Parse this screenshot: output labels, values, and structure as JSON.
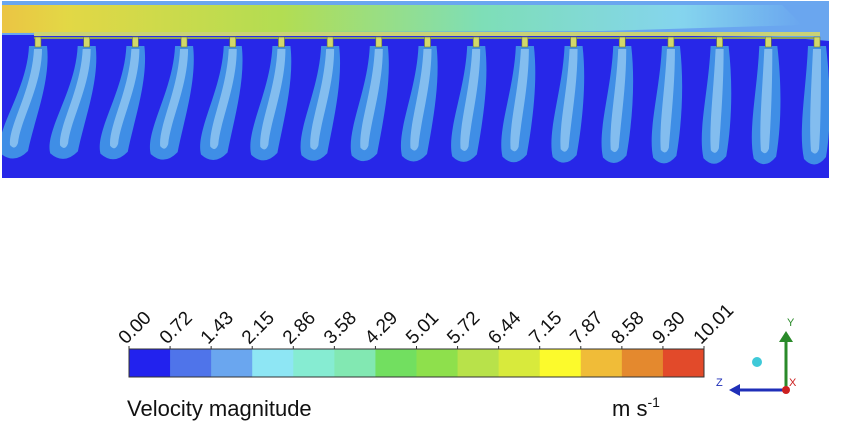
{
  "colorbar": {
    "title": "Velocity magnitude",
    "unit": "m s",
    "unit_exp": "-1",
    "ticks": [
      "0.00",
      "0.72",
      "1.43",
      "2.15",
      "2.86",
      "3.58",
      "4.29",
      "5.01",
      "5.72",
      "6.44",
      "7.15",
      "7.87",
      "8.58",
      "9.30",
      "10.01"
    ],
    "colors": [
      "#2222ee",
      "#4f74ea",
      "#6aa6ef",
      "#8ee6f4",
      "#86ecd2",
      "#82e8b2",
      "#72df60",
      "#8ee04c",
      "#b8e24a",
      "#d8ea3c",
      "#fcfa2c",
      "#f0bc38",
      "#e4892e",
      "#e24a2a"
    ]
  },
  "contour": {
    "background": "#2727e8",
    "plume_color": "#3f8ee6",
    "core_color": "#8fc6f0",
    "nozzle_count": 17
  },
  "axes": {
    "y": "Y",
    "z": "Z",
    "x": "X",
    "y_color": "#2a8a2a",
    "z_color": "#1f2fb8",
    "x_color": "#cc2020"
  }
}
